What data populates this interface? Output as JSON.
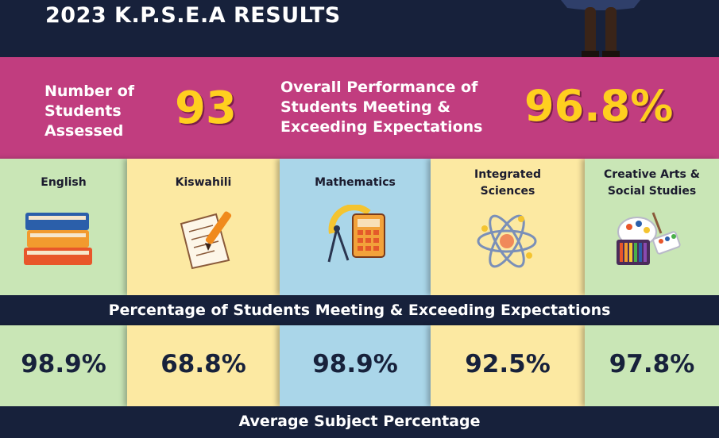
{
  "header": {
    "title": "2023 K.P.S.E.A RESULTS"
  },
  "banner": {
    "students_label": [
      "Number of",
      "Students",
      "Assessed"
    ],
    "students_value": "93",
    "overall_label": [
      "Overall Performance of",
      "Students Meeting &",
      "Exceeding Expectations"
    ],
    "overall_value": "96.8%"
  },
  "subjects": [
    {
      "name": [
        "English"
      ],
      "icon": "books-icon",
      "color": "#c9e6b6",
      "percent": "98.9%"
    },
    {
      "name": [
        "Kiswahili"
      ],
      "icon": "paper-and-pen-icon",
      "color": "#fce9a2",
      "percent": "68.8%"
    },
    {
      "name": [
        "Mathematics"
      ],
      "icon": "calculator-compass-icon",
      "color": "#aad6e9",
      "percent": "98.9%"
    },
    {
      "name": [
        "Integrated",
        "Sciences"
      ],
      "icon": "atom-icon",
      "color": "#fce9a2",
      "percent": "92.5%"
    },
    {
      "name": [
        "Creative Arts &",
        "Social Studies"
      ],
      "icon": "art-supplies-icon",
      "color": "#c9e6b6",
      "percent": "97.8%"
    }
  ],
  "section_labels": {
    "expectations": "Percentage of Students Meeting & Exceeding Expectations",
    "average": "Average Subject Percentage"
  }
}
